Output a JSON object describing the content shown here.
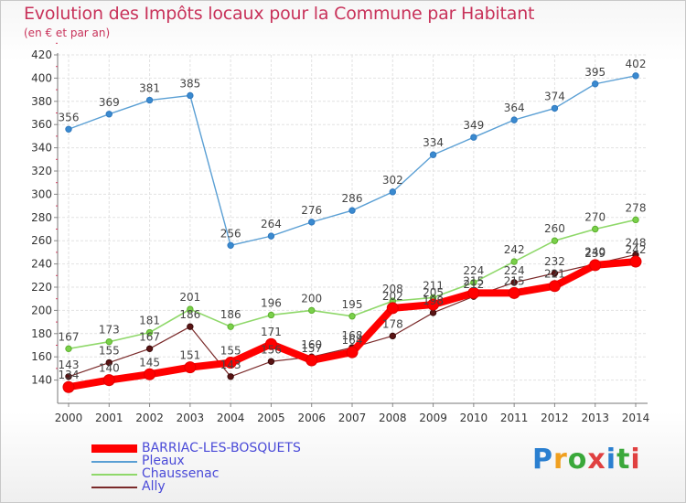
{
  "title": "Evolution des Impôts locaux pour la Commune par Habitant",
  "subtitle": "(en € et par an)",
  "logo_text": "Proxiti",
  "chart_data": {
    "type": "line",
    "title": "Evolution des Impôts locaux pour la Commune par Habitant",
    "subtitle": "(en € et par an)",
    "xlabel": "",
    "ylabel": "",
    "ylim": [
      120,
      420
    ],
    "yticks": [
      140,
      160,
      180,
      200,
      220,
      240,
      260,
      280,
      300,
      320,
      340,
      360,
      380,
      400,
      420
    ],
    "x": [
      "2000",
      "2001",
      "2002",
      "2003",
      "2004",
      "2005",
      "2006",
      "2007",
      "2008",
      "2009",
      "2010",
      "2011",
      "2012",
      "2013",
      "2014"
    ],
    "grid": true,
    "legend_position": "bottom-left",
    "series": [
      {
        "name": "BARRIAC-LES-BOSQUETS",
        "color": "#ff0000",
        "values": [
          134,
          140,
          145,
          151,
          155,
          171,
          157,
          164,
          202,
          205,
          215,
          215,
          221,
          239,
          242
        ]
      },
      {
        "name": "Pleaux",
        "color": "#5a9fd4",
        "values": [
          356,
          369,
          381,
          385,
          256,
          264,
          276,
          286,
          302,
          334,
          349,
          364,
          374,
          395,
          402
        ]
      },
      {
        "name": "Chaussenac",
        "color": "#8fd86a",
        "values": [
          167,
          173,
          181,
          201,
          186,
          196,
          200,
          195,
          208,
          211,
          224,
          242,
          260,
          270,
          278
        ]
      },
      {
        "name": "Ally",
        "color": "#7a2a2a",
        "values": [
          143,
          155,
          167,
          186,
          143,
          156,
          160,
          168,
          178,
          198,
          212,
          224,
          232,
          240,
          248
        ]
      }
    ]
  }
}
